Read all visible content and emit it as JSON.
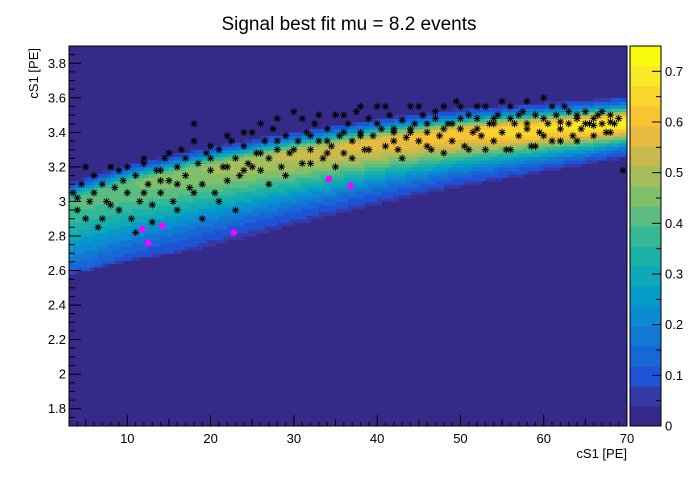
{
  "chart_data": {
    "type": "heatmap",
    "title": "Signal best fit mu = 8.2 events",
    "xlabel": "cS1  [PE]",
    "ylabel": "cS1  [PE]",
    "xlim": [
      3,
      70
    ],
    "ylim": [
      1.7,
      3.9
    ],
    "x_ticks": [
      10,
      20,
      30,
      40,
      50,
      60,
      70
    ],
    "y_ticks": [
      1.8,
      2,
      2.2,
      2.4,
      2.6,
      2.8,
      3,
      3.2,
      3.4,
      3.6,
      3.8
    ],
    "x_tick_labels": [
      "10",
      "20",
      "30",
      "40",
      "50",
      "60",
      "70"
    ],
    "y_tick_labels": [
      "1.8",
      "2",
      "2.2",
      "2.4",
      "2.6",
      "2.8",
      "3",
      "3.2",
      "3.4",
      "3.6",
      "3.8"
    ],
    "colorbar": {
      "range": [
        0,
        0.75
      ],
      "ticks": [
        0,
        0.1,
        0.2,
        0.3,
        0.4,
        0.5,
        0.6,
        0.7
      ],
      "tick_labels": [
        "0",
        "0.1",
        "0.2",
        "0.3",
        "0.4",
        "0.5",
        "0.6",
        "0.7"
      ],
      "palette": [
        "#352a87",
        "#343ba7",
        "#1f53d5",
        "#1768d6",
        "#1279d3",
        "#0c8ad2",
        "#069ac8",
        "#0fa8b8",
        "#1bb1a7",
        "#35b896",
        "#5bbd7f",
        "#82bf6b",
        "#a6bd5c",
        "#c8ba4d",
        "#e6bb3f",
        "#f8c434",
        "#f9d52d",
        "#f9e926",
        "#f9fb0e"
      ]
    },
    "band": {
      "description_centroid": [
        [
          3,
          3.0
        ],
        [
          10,
          3.1
        ],
        [
          20,
          3.2
        ],
        [
          30,
          3.28
        ],
        [
          40,
          3.35
        ],
        [
          50,
          3.4
        ],
        [
          60,
          3.43
        ],
        [
          70,
          3.46
        ]
      ],
      "peak_value": 0.72
    },
    "background_events": [
      [
        3.5,
        3.05
      ],
      [
        4,
        2.95
      ],
      [
        4.5,
        3.1
      ],
      [
        5,
        2.9
      ],
      [
        5.5,
        3.0
      ],
      [
        6,
        3.15
      ],
      [
        6.5,
        2.85
      ],
      [
        7,
        3.1
      ],
      [
        7.5,
        3.0
      ],
      [
        8,
        3.2
      ],
      [
        8.5,
        3.08
      ],
      [
        9,
        2.95
      ],
      [
        9.5,
        3.12
      ],
      [
        10,
        3.05
      ],
      [
        10.5,
        2.9
      ],
      [
        11,
        3.15
      ],
      [
        11.5,
        3.0
      ],
      [
        12,
        3.22
      ],
      [
        12.5,
        3.1
      ],
      [
        13,
        2.98
      ],
      [
        13.5,
        3.18
      ],
      [
        14,
        3.05
      ],
      [
        14.5,
        3.25
      ],
      [
        15,
        3.12
      ],
      [
        15.5,
        3.0
      ],
      [
        16,
        3.2
      ],
      [
        16.5,
        3.3
      ],
      [
        17,
        3.15
      ],
      [
        17.5,
        3.08
      ],
      [
        18,
        3.35
      ],
      [
        18.5,
        3.22
      ],
      [
        19,
        3.1
      ],
      [
        19.5,
        3.28
      ],
      [
        20,
        3.18
      ],
      [
        20.5,
        3.05
      ],
      [
        21,
        3.3
      ],
      [
        21.5,
        3.2
      ],
      [
        22,
        3.12
      ],
      [
        22.5,
        3.35
      ],
      [
        23,
        3.25
      ],
      [
        23.5,
        3.15
      ],
      [
        24,
        3.32
      ],
      [
        24.5,
        3.22
      ],
      [
        25,
        3.4
      ],
      [
        25.5,
        3.28
      ],
      [
        26,
        3.18
      ],
      [
        26.5,
        3.35
      ],
      [
        27,
        3.25
      ],
      [
        27.5,
        3.42
      ],
      [
        28,
        3.3
      ],
      [
        28.5,
        3.2
      ],
      [
        29,
        3.38
      ],
      [
        29.5,
        3.28
      ],
      [
        30,
        3.52
      ],
      [
        30.5,
        3.35
      ],
      [
        31,
        3.22
      ],
      [
        31.5,
        3.4
      ],
      [
        32,
        3.3
      ],
      [
        32.5,
        3.45
      ],
      [
        33,
        3.35
      ],
      [
        33.5,
        3.25
      ],
      [
        34,
        3.42
      ],
      [
        34.5,
        3.32
      ],
      [
        35,
        3.5
      ],
      [
        35.5,
        3.38
      ],
      [
        36,
        3.28
      ],
      [
        36.5,
        3.45
      ],
      [
        37,
        3.35
      ],
      [
        37.5,
        3.52
      ],
      [
        38,
        3.4
      ],
      [
        38.5,
        3.3
      ],
      [
        39,
        3.48
      ],
      [
        39.5,
        3.38
      ],
      [
        40,
        3.55
      ],
      [
        40.5,
        3.42
      ],
      [
        41,
        3.32
      ],
      [
        41.5,
        3.5
      ],
      [
        42,
        3.4
      ],
      [
        42.5,
        3.3
      ],
      [
        43,
        3.47
      ],
      [
        43.5,
        3.37
      ],
      [
        44,
        3.55
      ],
      [
        44.5,
        3.45
      ],
      [
        45,
        3.35
      ],
      [
        45.5,
        3.5
      ],
      [
        46,
        3.4
      ],
      [
        46.5,
        3.3
      ],
      [
        47,
        3.48
      ],
      [
        47.5,
        3.38
      ],
      [
        48,
        3.55
      ],
      [
        48.5,
        3.45
      ],
      [
        49,
        3.35
      ],
      [
        49.5,
        3.58
      ],
      [
        50,
        3.42
      ],
      [
        50.5,
        3.32
      ],
      [
        51,
        3.5
      ],
      [
        51.5,
        3.4
      ],
      [
        52,
        3.48
      ],
      [
        52.5,
        3.38
      ],
      [
        53,
        3.55
      ],
      [
        53.5,
        3.45
      ],
      [
        54,
        3.35
      ],
      [
        54.5,
        3.5
      ],
      [
        55,
        3.4
      ],
      [
        55.5,
        3.3
      ],
      [
        56,
        3.55
      ],
      [
        56.5,
        3.45
      ],
      [
        57,
        3.38
      ],
      [
        57.5,
        3.52
      ],
      [
        58,
        3.42
      ],
      [
        58.5,
        3.32
      ],
      [
        59,
        3.5
      ],
      [
        59.5,
        3.4
      ],
      [
        60,
        3.6
      ],
      [
        60.5,
        3.45
      ],
      [
        61,
        3.35
      ],
      [
        61.5,
        3.5
      ],
      [
        62,
        3.42
      ],
      [
        62.5,
        3.55
      ],
      [
        63,
        3.45
      ],
      [
        63.5,
        3.38
      ],
      [
        64,
        3.5
      ],
      [
        64.5,
        3.42
      ],
      [
        65,
        3.52
      ],
      [
        65.5,
        3.45
      ],
      [
        66,
        3.38
      ],
      [
        66.5,
        3.5
      ],
      [
        67,
        3.45
      ],
      [
        67.5,
        3.4
      ],
      [
        68,
        3.5
      ],
      [
        68.5,
        3.45
      ],
      [
        69,
        3.48
      ],
      [
        69.5,
        3.18
      ],
      [
        5,
        3.2
      ],
      [
        7,
        2.9
      ],
      [
        9,
        3.18
      ],
      [
        11,
        2.82
      ],
      [
        12,
        3.25
      ],
      [
        13,
        2.88
      ],
      [
        14,
        3.12
      ],
      [
        15,
        3.28
      ],
      [
        16,
        2.95
      ],
      [
        17,
        3.25
      ],
      [
        18,
        3.45
      ],
      [
        19,
        2.9
      ],
      [
        20,
        3.32
      ],
      [
        21,
        3.0
      ],
      [
        22,
        3.38
      ],
      [
        23,
        2.95
      ],
      [
        24,
        3.4
      ],
      [
        25,
        3.2
      ],
      [
        26,
        3.45
      ],
      [
        27,
        3.1
      ],
      [
        28,
        3.48
      ],
      [
        29,
        3.15
      ],
      [
        31,
        3.48
      ],
      [
        32,
        3.22
      ],
      [
        33,
        3.5
      ],
      [
        34,
        3.28
      ],
      [
        35,
        3.2
      ],
      [
        36,
        3.5
      ],
      [
        37,
        3.25
      ],
      [
        38,
        3.55
      ],
      [
        39,
        3.3
      ],
      [
        41,
        3.55
      ],
      [
        42,
        3.35
      ],
      [
        43,
        3.25
      ],
      [
        44,
        3.42
      ],
      [
        45,
        3.55
      ],
      [
        46,
        3.32
      ],
      [
        47,
        3.52
      ],
      [
        48,
        3.28
      ],
      [
        49,
        3.45
      ],
      [
        50,
        3.55
      ],
      [
        51,
        3.3
      ],
      [
        52,
        3.55
      ],
      [
        53,
        3.3
      ],
      [
        54,
        3.48
      ],
      [
        55,
        3.58
      ],
      [
        56,
        3.3
      ],
      [
        57,
        3.5
      ],
      [
        58,
        3.58
      ],
      [
        59,
        3.32
      ],
      [
        60,
        3.38
      ],
      [
        61,
        3.55
      ],
      [
        62,
        3.35
      ],
      [
        63,
        3.52
      ],
      [
        64,
        3.35
      ],
      [
        65,
        3.45
      ],
      [
        66,
        3.48
      ],
      [
        67,
        3.52
      ],
      [
        68,
        3.4
      ],
      [
        4,
        3.02
      ],
      [
        6,
        3.05
      ],
      [
        8,
        2.98
      ],
      [
        10,
        3.2
      ],
      [
        12,
        3.05
      ],
      [
        14,
        3.18
      ],
      [
        16,
        3.1
      ],
      [
        18,
        3.05
      ],
      [
        20,
        3.25
      ],
      [
        22,
        3.2
      ],
      [
        24,
        3.18
      ],
      [
        26,
        3.28
      ],
      [
        28,
        3.35
      ],
      [
        30,
        3.3
      ],
      [
        32,
        3.38
      ],
      [
        34,
        3.35
      ],
      [
        36,
        3.4
      ],
      [
        38,
        3.38
      ],
      [
        40,
        3.45
      ],
      [
        42,
        3.42
      ],
      [
        44,
        3.4
      ],
      [
        46,
        3.45
      ],
      [
        48,
        3.42
      ],
      [
        50,
        3.48
      ],
      [
        52,
        3.42
      ],
      [
        54,
        3.45
      ],
      [
        56,
        3.48
      ],
      [
        58,
        3.45
      ],
      [
        60,
        3.48
      ],
      [
        62,
        3.46
      ],
      [
        64,
        3.48
      ],
      [
        66,
        3.44
      ],
      [
        68,
        3.46
      ]
    ],
    "signal_events": [
      [
        11.8,
        2.84
      ],
      [
        12.5,
        2.76
      ],
      [
        14.2,
        2.86
      ],
      [
        22.8,
        2.82
      ],
      [
        34.2,
        3.13
      ],
      [
        36.8,
        3.09
      ]
    ],
    "colors": {
      "background": "#352a87",
      "frame": "#ffffff",
      "axis": "#000000",
      "marker_background": "#000000",
      "marker_signal": "#ff00ff"
    }
  }
}
